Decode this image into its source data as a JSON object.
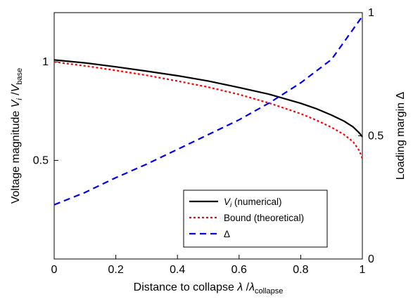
{
  "chart_data": {
    "type": "line",
    "title": "",
    "xlabel": {
      "main": "Distance to collapse ",
      "sym": "λ",
      "slash": " /",
      "sym2": "λ",
      "sub": "collapse"
    },
    "ylabel_left": {
      "main": "Voltage magnitude ",
      "v1": "V",
      "sub1": "i",
      "slash": " /",
      "v2": "V",
      "sub2": "base"
    },
    "ylabel_right": {
      "main": "Loading margin ",
      "sym": "Δ"
    },
    "xlim": [
      0,
      1
    ],
    "ylim_left": [
      0,
      1.25
    ],
    "ylim_right": [
      0,
      1
    ],
    "xticks": [
      {
        "value": 0,
        "label": "0"
      },
      {
        "value": 0.2,
        "label": "0.2"
      },
      {
        "value": 0.4,
        "label": "0.4"
      },
      {
        "value": 0.6,
        "label": "0.6"
      },
      {
        "value": 0.8,
        "label": "0.8"
      },
      {
        "value": 1,
        "label": "1"
      }
    ],
    "yticks_left": [
      {
        "value": 0.5,
        "label": "0.5"
      },
      {
        "value": 1,
        "label": "1"
      }
    ],
    "yticks_right": [
      {
        "value": 0,
        "label": "0"
      },
      {
        "value": 0.5,
        "label": "0.5"
      },
      {
        "value": 1,
        "label": "1"
      }
    ],
    "grid": false,
    "legend_position": "bottom-right",
    "series": [
      {
        "name": "V_i (numerical)",
        "legend": {
          "sym": "V",
          "sub": "i",
          "rest": " (numerical)"
        },
        "axis": "left",
        "color": "#000000",
        "style": "solid",
        "x": [
          0,
          0.1,
          0.2,
          0.3,
          0.4,
          0.5,
          0.6,
          0.7,
          0.8,
          0.85,
          0.9,
          0.94,
          0.97,
          0.99,
          1.0
        ],
        "y": [
          1.01,
          0.995,
          0.975,
          0.953,
          0.93,
          0.903,
          0.87,
          0.835,
          0.79,
          0.763,
          0.73,
          0.7,
          0.67,
          0.64,
          0.62
        ]
      },
      {
        "name": "Bound (theoretical)",
        "legend": {
          "sym": "",
          "sub": "",
          "rest": "Bound (theoretical)"
        },
        "axis": "left",
        "color": "#ff0000",
        "style": "dotted",
        "x": [
          0,
          0.1,
          0.2,
          0.3,
          0.4,
          0.5,
          0.6,
          0.7,
          0.8,
          0.85,
          0.9,
          0.94,
          0.97,
          0.99,
          1.0
        ],
        "y": [
          1.0,
          0.98,
          0.957,
          0.932,
          0.903,
          0.872,
          0.835,
          0.79,
          0.737,
          0.705,
          0.668,
          0.632,
          0.595,
          0.55,
          0.51
        ]
      },
      {
        "name": "Δ",
        "legend": {
          "sym": "",
          "sub": "",
          "rest": "Δ"
        },
        "axis": "right",
        "color": "#0000ff",
        "style": "dashed",
        "x": [
          0,
          0.1,
          0.2,
          0.3,
          0.4,
          0.5,
          0.6,
          0.7,
          0.8,
          0.9,
          1.0
        ],
        "y": [
          0.22,
          0.27,
          0.33,
          0.385,
          0.445,
          0.505,
          0.565,
          0.635,
          0.715,
          0.81,
          0.985
        ]
      }
    ]
  }
}
